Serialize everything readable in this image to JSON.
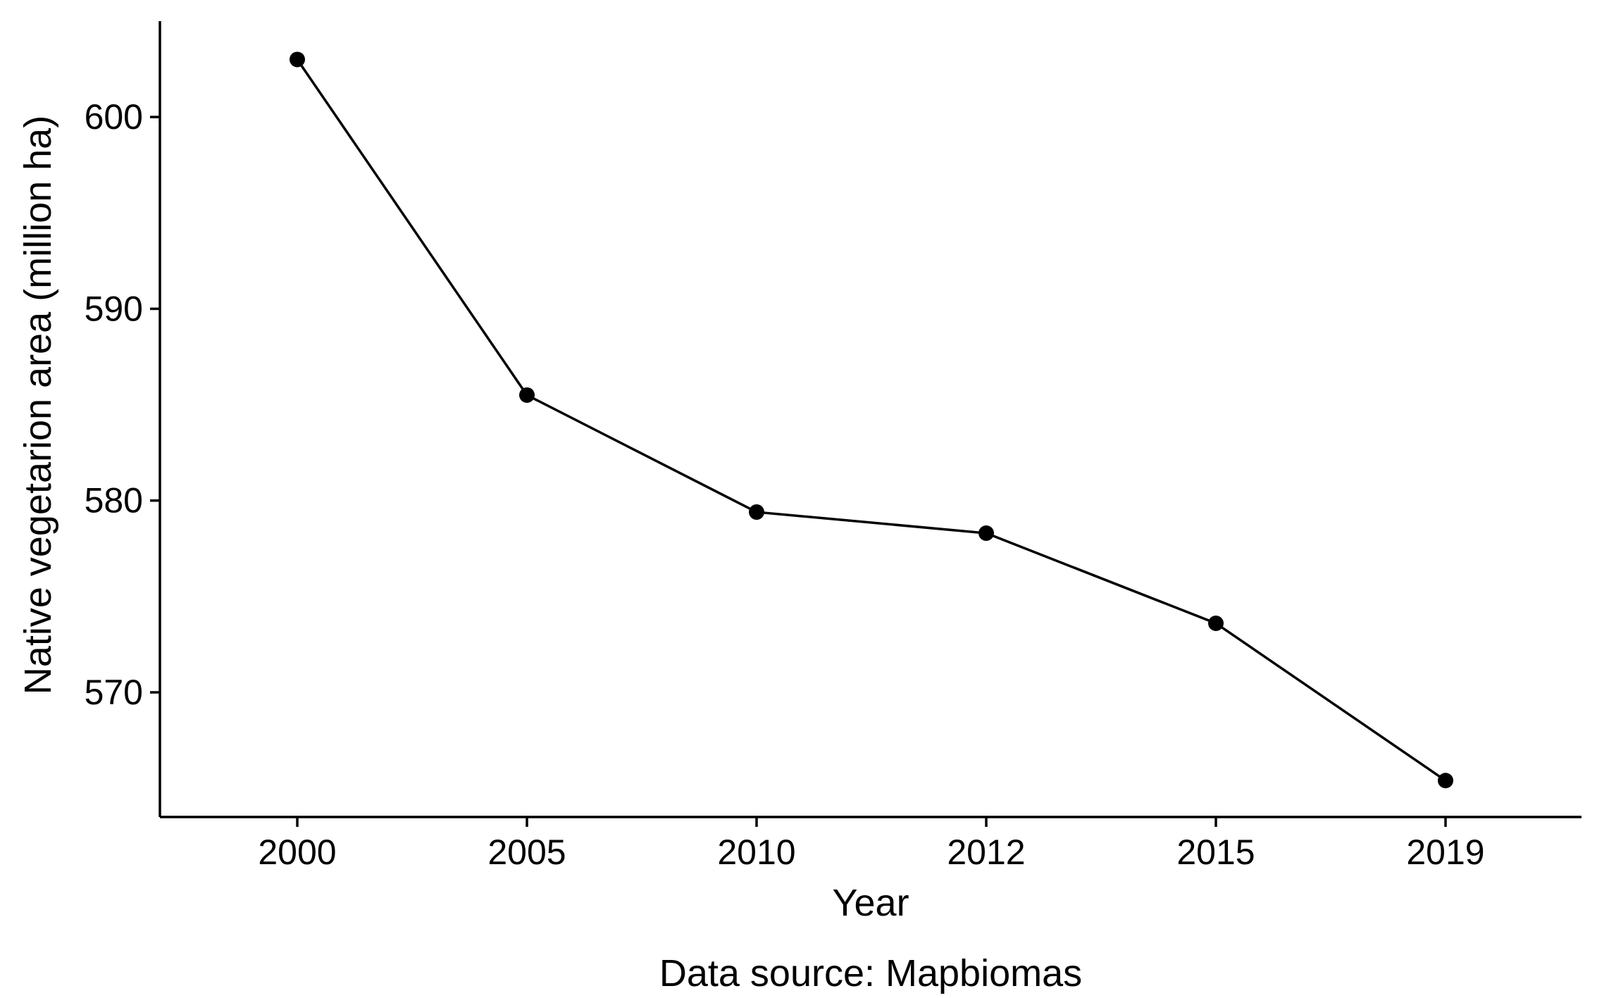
{
  "chart_data": {
    "type": "line",
    "title": "",
    "xlabel": "Year",
    "ylabel": "Native vegetarion area (million ha)",
    "caption": "Data source: Mapbiomas",
    "categories": [
      "2000",
      "2005",
      "2010",
      "2012",
      "2015",
      "2019"
    ],
    "series": [
      {
        "values": [
          603.0,
          585.5,
          579.4,
          578.3,
          573.6,
          565.4
        ]
      }
    ],
    "yticks": [
      570,
      580,
      590,
      600
    ],
    "ylim": [
      563.5,
      605.0
    ],
    "grid": false,
    "legend": "none",
    "colors": {
      "line": "#000000",
      "point": "#000000",
      "axis": "#000000",
      "background": "#ffffff"
    }
  }
}
